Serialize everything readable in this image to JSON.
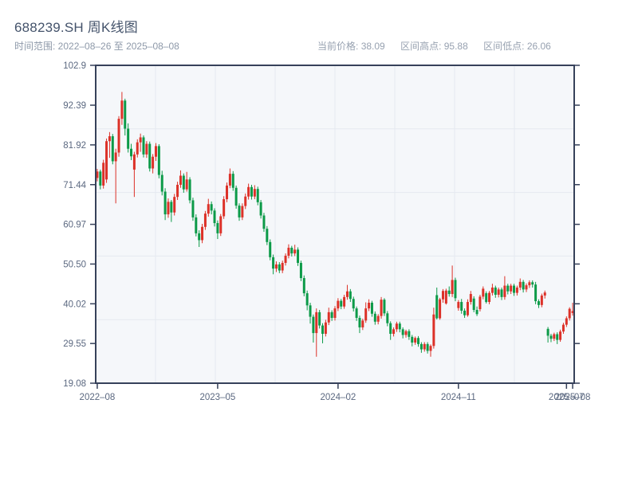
{
  "header": {
    "title": "688239.SH 周K线图",
    "range_label": "时间范围: 2022–08–26 至 2025–08–08",
    "stats": [
      {
        "label": "当前价格",
        "value": "38.09"
      },
      {
        "label": "区间高点",
        "value": "95.88"
      },
      {
        "label": "区间低点",
        "value": "26.06"
      }
    ]
  },
  "chart_data": {
    "type": "candlestick",
    "title": "688239.SH 周K线图",
    "interval": "weekly",
    "date_range": [
      "2022-08-26",
      "2025-08-08"
    ],
    "current_price": 38.09,
    "range_high": 95.88,
    "range_low": 26.06,
    "ylim": [
      19.08,
      102.9
    ],
    "y_tick_labels": [
      "102.9",
      "92.39",
      "81.92",
      "71.44",
      "60.97",
      "50.50",
      "40.02",
      "29.55",
      "19.08"
    ],
    "y_tick_values": [
      102.9,
      92.39,
      81.92,
      71.44,
      60.97,
      50.5,
      40.02,
      29.55,
      19.08
    ],
    "x_ticks": [
      {
        "week": 0,
        "label": "2022–08"
      },
      {
        "week": 39,
        "label": "2023–05"
      },
      {
        "week": 78,
        "label": "2024–02"
      },
      {
        "week": 117,
        "label": "2024–11"
      },
      {
        "week": 152,
        "label": "2025–07"
      },
      {
        "week": 154,
        "label": "2025–08"
      }
    ],
    "up_color": "#dc3128",
    "down_color": "#0c9a48",
    "plot_bg": "#f5f7fa",
    "grid_color": "#e5e9f0",
    "spine_color": "#36415a",
    "label_color": "#5b6880",
    "grid_x_divisions": 8,
    "grid_y_divisions": 5,
    "candles_ohlc": [
      [
        73.2,
        75.6,
        72.3,
        74.9
      ],
      [
        74.9,
        75.4,
        70.2,
        71.2
      ],
      [
        71.2,
        78.0,
        70.4,
        77.2
      ],
      [
        72.8,
        83.6,
        71.9,
        82.9
      ],
      [
        82.9,
        85.3,
        78.5,
        84.2
      ],
      [
        84.2,
        84.8,
        76.8,
        77.6
      ],
      [
        77.6,
        80.9,
        66.5,
        79.9
      ],
      [
        79.9,
        89.5,
        78.8,
        88.8
      ],
      [
        88.8,
        95.88,
        87.2,
        93.6
      ],
      [
        93.6,
        94.1,
        84.4,
        86.2
      ],
      [
        86.2,
        87.6,
        79.9,
        80.9
      ],
      [
        80.9,
        82.2,
        77.9,
        78.9
      ],
      [
        75.4,
        80.1,
        68.2,
        79.4
      ],
      [
        79.4,
        83.4,
        78.6,
        82.6
      ],
      [
        82.6,
        84.9,
        80.1,
        83.9
      ],
      [
        83.9,
        84.4,
        78.6,
        79.4
      ],
      [
        79.4,
        82.9,
        78.5,
        82.2
      ],
      [
        82.2,
        82.8,
        74.9,
        75.7
      ],
      [
        75.7,
        79.5,
        74.4,
        78.8
      ],
      [
        78.8,
        82.4,
        77.7,
        81.6
      ],
      [
        81.6,
        82.1,
        73.1,
        74.0
      ],
      [
        74.0,
        75.1,
        68.6,
        69.6
      ],
      [
        69.6,
        70.5,
        62.1,
        63.6
      ],
      [
        63.6,
        67.8,
        62.7,
        66.9
      ],
      [
        66.9,
        67.4,
        61.6,
        64.1
      ],
      [
        64.1,
        69.0,
        63.3,
        68.2
      ],
      [
        68.2,
        72.2,
        67.4,
        71.4
      ],
      [
        71.4,
        75.2,
        70.6,
        73.8
      ],
      [
        73.8,
        74.4,
        69.3,
        70.2
      ],
      [
        70.2,
        74.8,
        69.6,
        72.8
      ],
      [
        72.8,
        73.4,
        66.5,
        67.3
      ],
      [
        67.3,
        68.0,
        61.9,
        62.8
      ],
      [
        62.8,
        63.6,
        57.8,
        58.6
      ],
      [
        58.6,
        59.4,
        55.0,
        56.8
      ],
      [
        56.8,
        61.1,
        56.0,
        60.3
      ],
      [
        60.3,
        64.5,
        59.5,
        63.8
      ],
      [
        63.8,
        67.7,
        63.0,
        66.3
      ],
      [
        66.3,
        67.0,
        63.6,
        64.6
      ],
      [
        64.6,
        65.2,
        60.4,
        61.3
      ],
      [
        61.3,
        62.0,
        57.1,
        58.6
      ],
      [
        58.6,
        63.7,
        57.9,
        63.1
      ],
      [
        63.1,
        68.4,
        62.4,
        67.6
      ],
      [
        67.6,
        72.0,
        66.8,
        71.2
      ],
      [
        71.2,
        75.7,
        70.5,
        74.3
      ],
      [
        74.3,
        75.0,
        69.8,
        70.6
      ],
      [
        70.6,
        71.2,
        65.1,
        65.9
      ],
      [
        65.9,
        66.5,
        61.9,
        62.8
      ],
      [
        62.8,
        66.5,
        62.1,
        65.8
      ],
      [
        65.8,
        69.1,
        65.0,
        68.3
      ],
      [
        68.3,
        71.7,
        67.5,
        70.8
      ],
      [
        70.8,
        71.4,
        67.5,
        68.3
      ],
      [
        68.3,
        71.3,
        67.6,
        70.3
      ],
      [
        70.3,
        70.9,
        66.0,
        66.8
      ],
      [
        66.8,
        67.4,
        62.5,
        63.3
      ],
      [
        63.3,
        64.0,
        59.0,
        59.8
      ],
      [
        59.8,
        60.5,
        55.5,
        56.3
      ],
      [
        56.3,
        57.0,
        51.5,
        52.3
      ],
      [
        52.3,
        53.0,
        47.8,
        49.3
      ],
      [
        49.3,
        51.2,
        48.4,
        50.4
      ],
      [
        50.4,
        51.0,
        48.1,
        48.8
      ],
      [
        48.8,
        51.4,
        48.1,
        50.8
      ],
      [
        50.8,
        53.3,
        50.1,
        52.7
      ],
      [
        52.7,
        55.7,
        52.0,
        54.8
      ],
      [
        54.8,
        55.3,
        52.5,
        53.3
      ],
      [
        53.3,
        55.6,
        52.6,
        54.3
      ],
      [
        54.3,
        54.9,
        50.0,
        50.8
      ],
      [
        50.8,
        51.4,
        46.0,
        46.8
      ],
      [
        46.8,
        47.5,
        42.0,
        42.8
      ],
      [
        42.8,
        43.5,
        38.3,
        39.6
      ],
      [
        39.6,
        40.3,
        34.8,
        36.6
      ],
      [
        36.6,
        37.2,
        29.8,
        32.3
      ],
      [
        32.3,
        38.8,
        26.06,
        37.8
      ],
      [
        37.8,
        38.4,
        33.5,
        34.3
      ],
      [
        34.3,
        34.9,
        29.6,
        32.1
      ],
      [
        32.1,
        35.8,
        31.4,
        35.1
      ],
      [
        35.1,
        39.0,
        34.4,
        37.8
      ],
      [
        37.8,
        38.3,
        35.5,
        36.3
      ],
      [
        36.3,
        39.4,
        35.6,
        38.8
      ],
      [
        38.8,
        41.5,
        38.1,
        40.8
      ],
      [
        40.8,
        41.3,
        38.6,
        39.3
      ],
      [
        39.3,
        42.4,
        38.7,
        41.8
      ],
      [
        41.8,
        45.0,
        41.1,
        43.3
      ],
      [
        43.3,
        43.9,
        40.5,
        41.3
      ],
      [
        41.3,
        41.9,
        38.0,
        38.8
      ],
      [
        38.8,
        39.3,
        35.5,
        36.3
      ],
      [
        36.3,
        36.9,
        32.3,
        33.8
      ],
      [
        33.8,
        36.1,
        33.1,
        35.6
      ],
      [
        35.6,
        40.4,
        35.0,
        38.8
      ],
      [
        38.8,
        41.2,
        38.1,
        40.3
      ],
      [
        40.3,
        40.8,
        36.6,
        37.4
      ],
      [
        37.4,
        38.0,
        34.5,
        35.3
      ],
      [
        35.3,
        37.3,
        34.6,
        36.8
      ],
      [
        36.8,
        41.8,
        36.1,
        41.1
      ],
      [
        41.1,
        41.5,
        36.8,
        37.5
      ],
      [
        37.5,
        38.1,
        34.1,
        34.9
      ],
      [
        34.9,
        35.4,
        30.5,
        32.1
      ],
      [
        32.1,
        33.8,
        31.4,
        33.3
      ],
      [
        33.3,
        35.3,
        32.6,
        34.8
      ],
      [
        34.8,
        35.3,
        32.5,
        33.3
      ],
      [
        33.3,
        33.8,
        30.9,
        31.8
      ],
      [
        31.8,
        33.2,
        31.1,
        32.8
      ],
      [
        32.8,
        33.3,
        30.5,
        31.3
      ],
      [
        31.3,
        31.8,
        28.8,
        29.8
      ],
      [
        29.8,
        31.4,
        29.2,
        31.0
      ],
      [
        31.0,
        31.5,
        28.7,
        29.4
      ],
      [
        29.4,
        29.9,
        27.1,
        28.0
      ],
      [
        28.0,
        29.9,
        27.4,
        29.4
      ],
      [
        29.4,
        29.9,
        26.9,
        27.6
      ],
      [
        27.6,
        29.3,
        26.06,
        28.9
      ],
      [
        28.9,
        39.0,
        28.2,
        37.2
      ],
      [
        42.3,
        44.3,
        35.9,
        36.2
      ],
      [
        36.2,
        41.6,
        35.8,
        41.2
      ],
      [
        41.2,
        43.9,
        40.3,
        43.4
      ],
      [
        40.1,
        44.0,
        39.8,
        43.5
      ],
      [
        43.5,
        44.6,
        41.9,
        42.6
      ],
      [
        42.6,
        50.1,
        41.8,
        46.3
      ],
      [
        46.3,
        46.9,
        40.7,
        41.5
      ],
      [
        38.9,
        41.0,
        38.2,
        40.5
      ],
      [
        40.5,
        41.3,
        37.4,
        38.2
      ],
      [
        38.2,
        38.8,
        36.3,
        37.0
      ],
      [
        37.0,
        41.2,
        36.6,
        40.5
      ],
      [
        40.5,
        43.4,
        39.8,
        42.6
      ],
      [
        41.4,
        42.0,
        37.8,
        38.4
      ],
      [
        38.4,
        39.3,
        36.8,
        37.3
      ],
      [
        38.6,
        42.4,
        38.0,
        41.9
      ],
      [
        41.9,
        44.6,
        41.2,
        44.0
      ],
      [
        42.8,
        43.3,
        40.1,
        40.5
      ],
      [
        40.5,
        43.4,
        39.9,
        42.9
      ],
      [
        42.9,
        45.3,
        42.2,
        44.3
      ],
      [
        44.3,
        44.8,
        41.6,
        42.4
      ],
      [
        42.4,
        44.3,
        41.7,
        43.8
      ],
      [
        43.8,
        44.3,
        41.0,
        41.8
      ],
      [
        41.8,
        47.3,
        41.1,
        44.8
      ],
      [
        44.8,
        45.3,
        42.5,
        43.3
      ],
      [
        43.3,
        45.3,
        42.6,
        44.8
      ],
      [
        44.8,
        45.3,
        42.1,
        42.9
      ],
      [
        42.9,
        44.8,
        42.2,
        44.3
      ],
      [
        44.3,
        46.7,
        43.6,
        45.8
      ],
      [
        45.8,
        46.3,
        43.0,
        43.8
      ],
      [
        43.8,
        45.4,
        43.1,
        44.9
      ],
      [
        44.9,
        46.2,
        44.2,
        45.7
      ],
      [
        45.7,
        46.2,
        44.3,
        45.1
      ],
      [
        45.1,
        45.8,
        39.9,
        40.7
      ],
      [
        40.7,
        41.2,
        38.9,
        39.7
      ],
      [
        39.7,
        42.7,
        39.1,
        42.2
      ],
      [
        42.2,
        43.5,
        41.4,
        43.0
      ],
      [
        33.4,
        33.9,
        29.8,
        31.6
      ],
      [
        31.6,
        32.1,
        29.9,
        30.8
      ],
      [
        30.8,
        32.4,
        30.2,
        32.0
      ],
      [
        32.0,
        32.5,
        29.4,
        30.5
      ],
      [
        30.5,
        33.2,
        30.0,
        32.7
      ],
      [
        32.7,
        35.0,
        32.1,
        34.5
      ],
      [
        34.5,
        36.7,
        33.9,
        36.2
      ],
      [
        36.2,
        39.1,
        35.6,
        38.7
      ],
      [
        37.6,
        40.3,
        36.9,
        38.09
      ]
    ]
  }
}
